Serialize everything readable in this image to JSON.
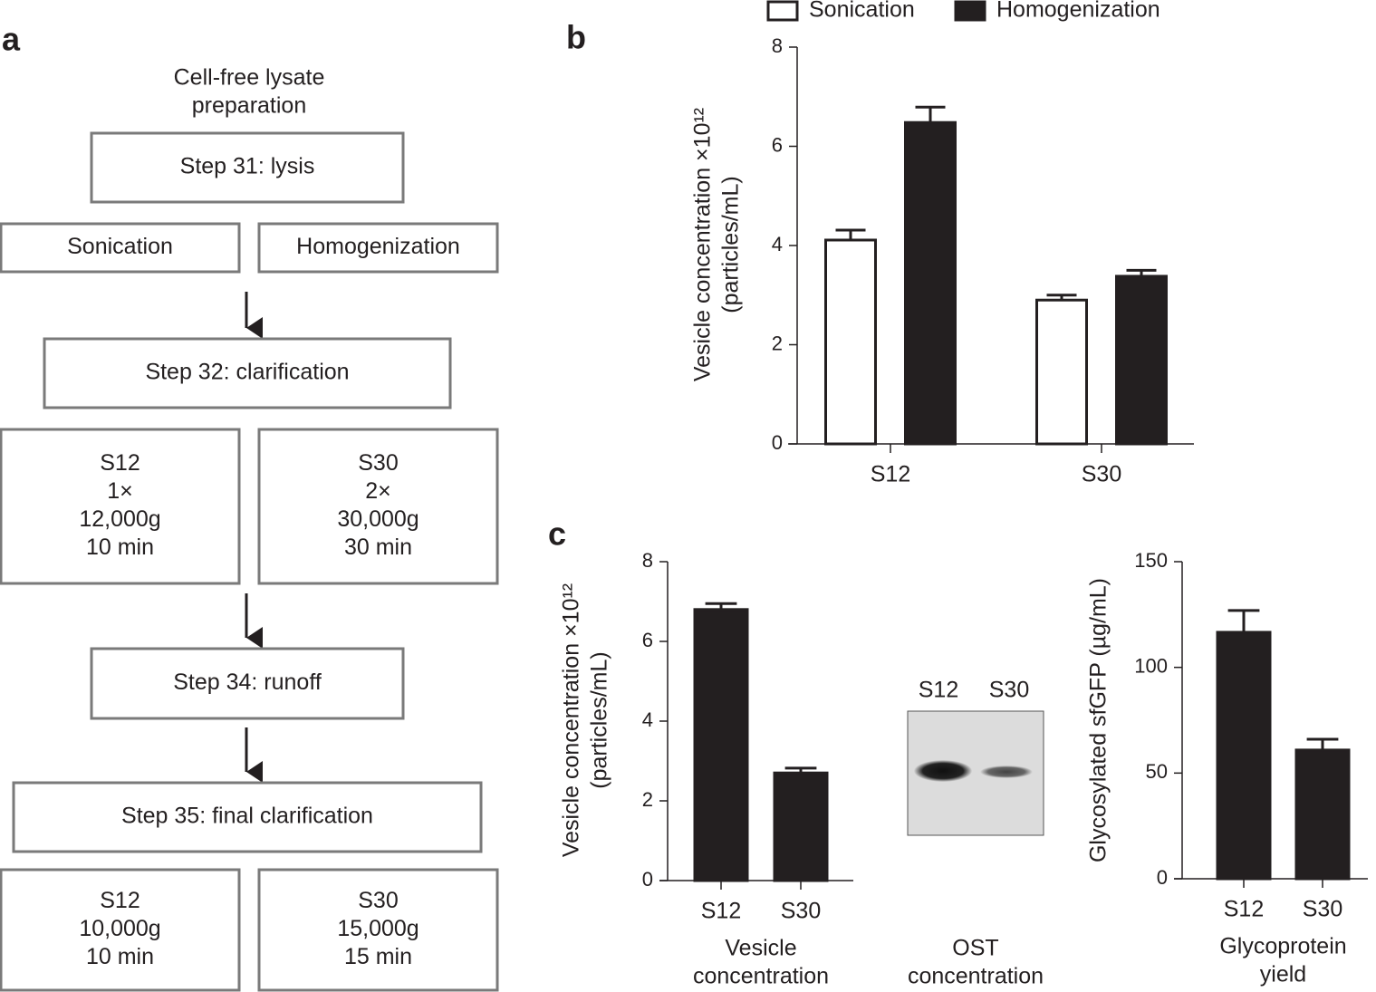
{
  "panel_labels": [
    "a",
    "b",
    "c"
  ],
  "flowchart": {
    "title": [
      "Cell-free lysate",
      "preparation"
    ],
    "nodes": [
      {
        "lines": [
          "Step 31: lysis"
        ]
      },
      {
        "lines": [
          "Sonication"
        ]
      },
      {
        "lines": [
          "Homogenization"
        ]
      },
      {
        "lines": [
          "Step 32: clarification"
        ]
      },
      {
        "lines": [
          "S12",
          "1×",
          "12,000g",
          "10 min"
        ]
      },
      {
        "lines": [
          "S30",
          "2×",
          "30,000g",
          "30 min"
        ]
      },
      {
        "lines": [
          "Step 34: runoff"
        ]
      },
      {
        "lines": [
          "Step 35: final clarification"
        ]
      },
      {
        "lines": [
          "S12",
          "10,000g",
          "10 min"
        ]
      },
      {
        "lines": [
          "S30",
          "15,000g",
          "15 min"
        ]
      }
    ]
  },
  "blot": {
    "lanes": [
      "S12",
      "S30"
    ],
    "x_label": [
      "OST",
      "concentration"
    ]
  },
  "chart_data": [
    {
      "type": "bar",
      "y_label": [
        "Vesicle concentration ×10¹²",
        "(particles/mL)"
      ],
      "categories": [
        "S12",
        "S30"
      ],
      "series": [
        {
          "name": "Sonication",
          "color": "#ffffff",
          "values": [
            4.11,
            2.9
          ],
          "errors": [
            0.2,
            0.1
          ]
        },
        {
          "name": "Homogenization",
          "color": "#231f20",
          "values": [
            6.48,
            3.38
          ],
          "errors": [
            0.31,
            0.12
          ]
        }
      ],
      "ylim": [
        0,
        8
      ],
      "yticks": [
        0,
        2,
        4,
        6,
        8
      ],
      "legend": "top"
    },
    {
      "type": "bar",
      "y_label": [
        "Vesicle concentration ×10¹²",
        "(particles/mL)"
      ],
      "x_label": [
        "Vesicle",
        "concentration"
      ],
      "categories": [
        "S12",
        "S30"
      ],
      "values": [
        6.8,
        2.7
      ],
      "errors": [
        0.15,
        0.12
      ],
      "color": "#231f20",
      "ylim": [
        0,
        8
      ],
      "yticks": [
        0,
        2,
        4,
        6,
        8
      ]
    },
    {
      "type": "bar",
      "y_label": [
        "Glycosylated sfGFP (µg/mL)"
      ],
      "x_label": [
        "Glycoprotein",
        "yield"
      ],
      "categories": [
        "S12",
        "S30"
      ],
      "values": [
        116.6,
        60.9
      ],
      "errors": [
        10.3,
        5.1
      ],
      "color": "#231f20",
      "ylim": [
        0,
        150
      ],
      "yticks": [
        0,
        50,
        100,
        150
      ]
    }
  ]
}
